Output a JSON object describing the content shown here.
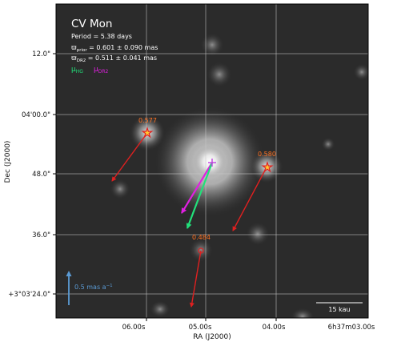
{
  "chart_data": {
    "type": "scatter",
    "title": "CV Mon",
    "period_text": "Period =   5.38 days",
    "parallax_prior_text": "ϖ",
    "parallax_prior_sub": "prior",
    "parallax_prior_value": " = 0.601 ± 0.090 mas",
    "parallax_dr2_text": "ϖ",
    "parallax_dr2_sub": "DR2",
    "parallax_dr2_value": " = 0.511 ± 0.041 mas",
    "legend": [
      {
        "symbol": "μ",
        "sub": "HG",
        "color": "#22e07a"
      },
      {
        "symbol": "μ",
        "sub": "DR2",
        "color": "#e020e0"
      }
    ],
    "xlabel": "RA (J2000)",
    "ylabel": "Dec (J2000)",
    "x_ticks": [
      "06.00s",
      "05.00s",
      "04.00s",
      "6h37m03.00s"
    ],
    "y_ticks": [
      "12.0\"",
      "04'00.0\"",
      "48.0\"",
      "36.0\"",
      "+3°03'24.0\""
    ],
    "grid": true,
    "scale_arrow_label": "0.5 mas a",
    "scale_arrow_exp": "−1",
    "scale_bar_label": "15 kau",
    "companions": [
      {
        "label": "0.577",
        "marker": "star"
      },
      {
        "label": "0.580",
        "marker": "star"
      },
      {
        "label": "0.484",
        "marker": "circle"
      }
    ],
    "colors": {
      "background": "#2b2b2b",
      "arrow": "#e02020",
      "hg_arrow": "#22e07a",
      "dr2_arrow": "#e020e0",
      "scale_arrow": "#5b9bd5",
      "label": "#ff7020"
    }
  }
}
